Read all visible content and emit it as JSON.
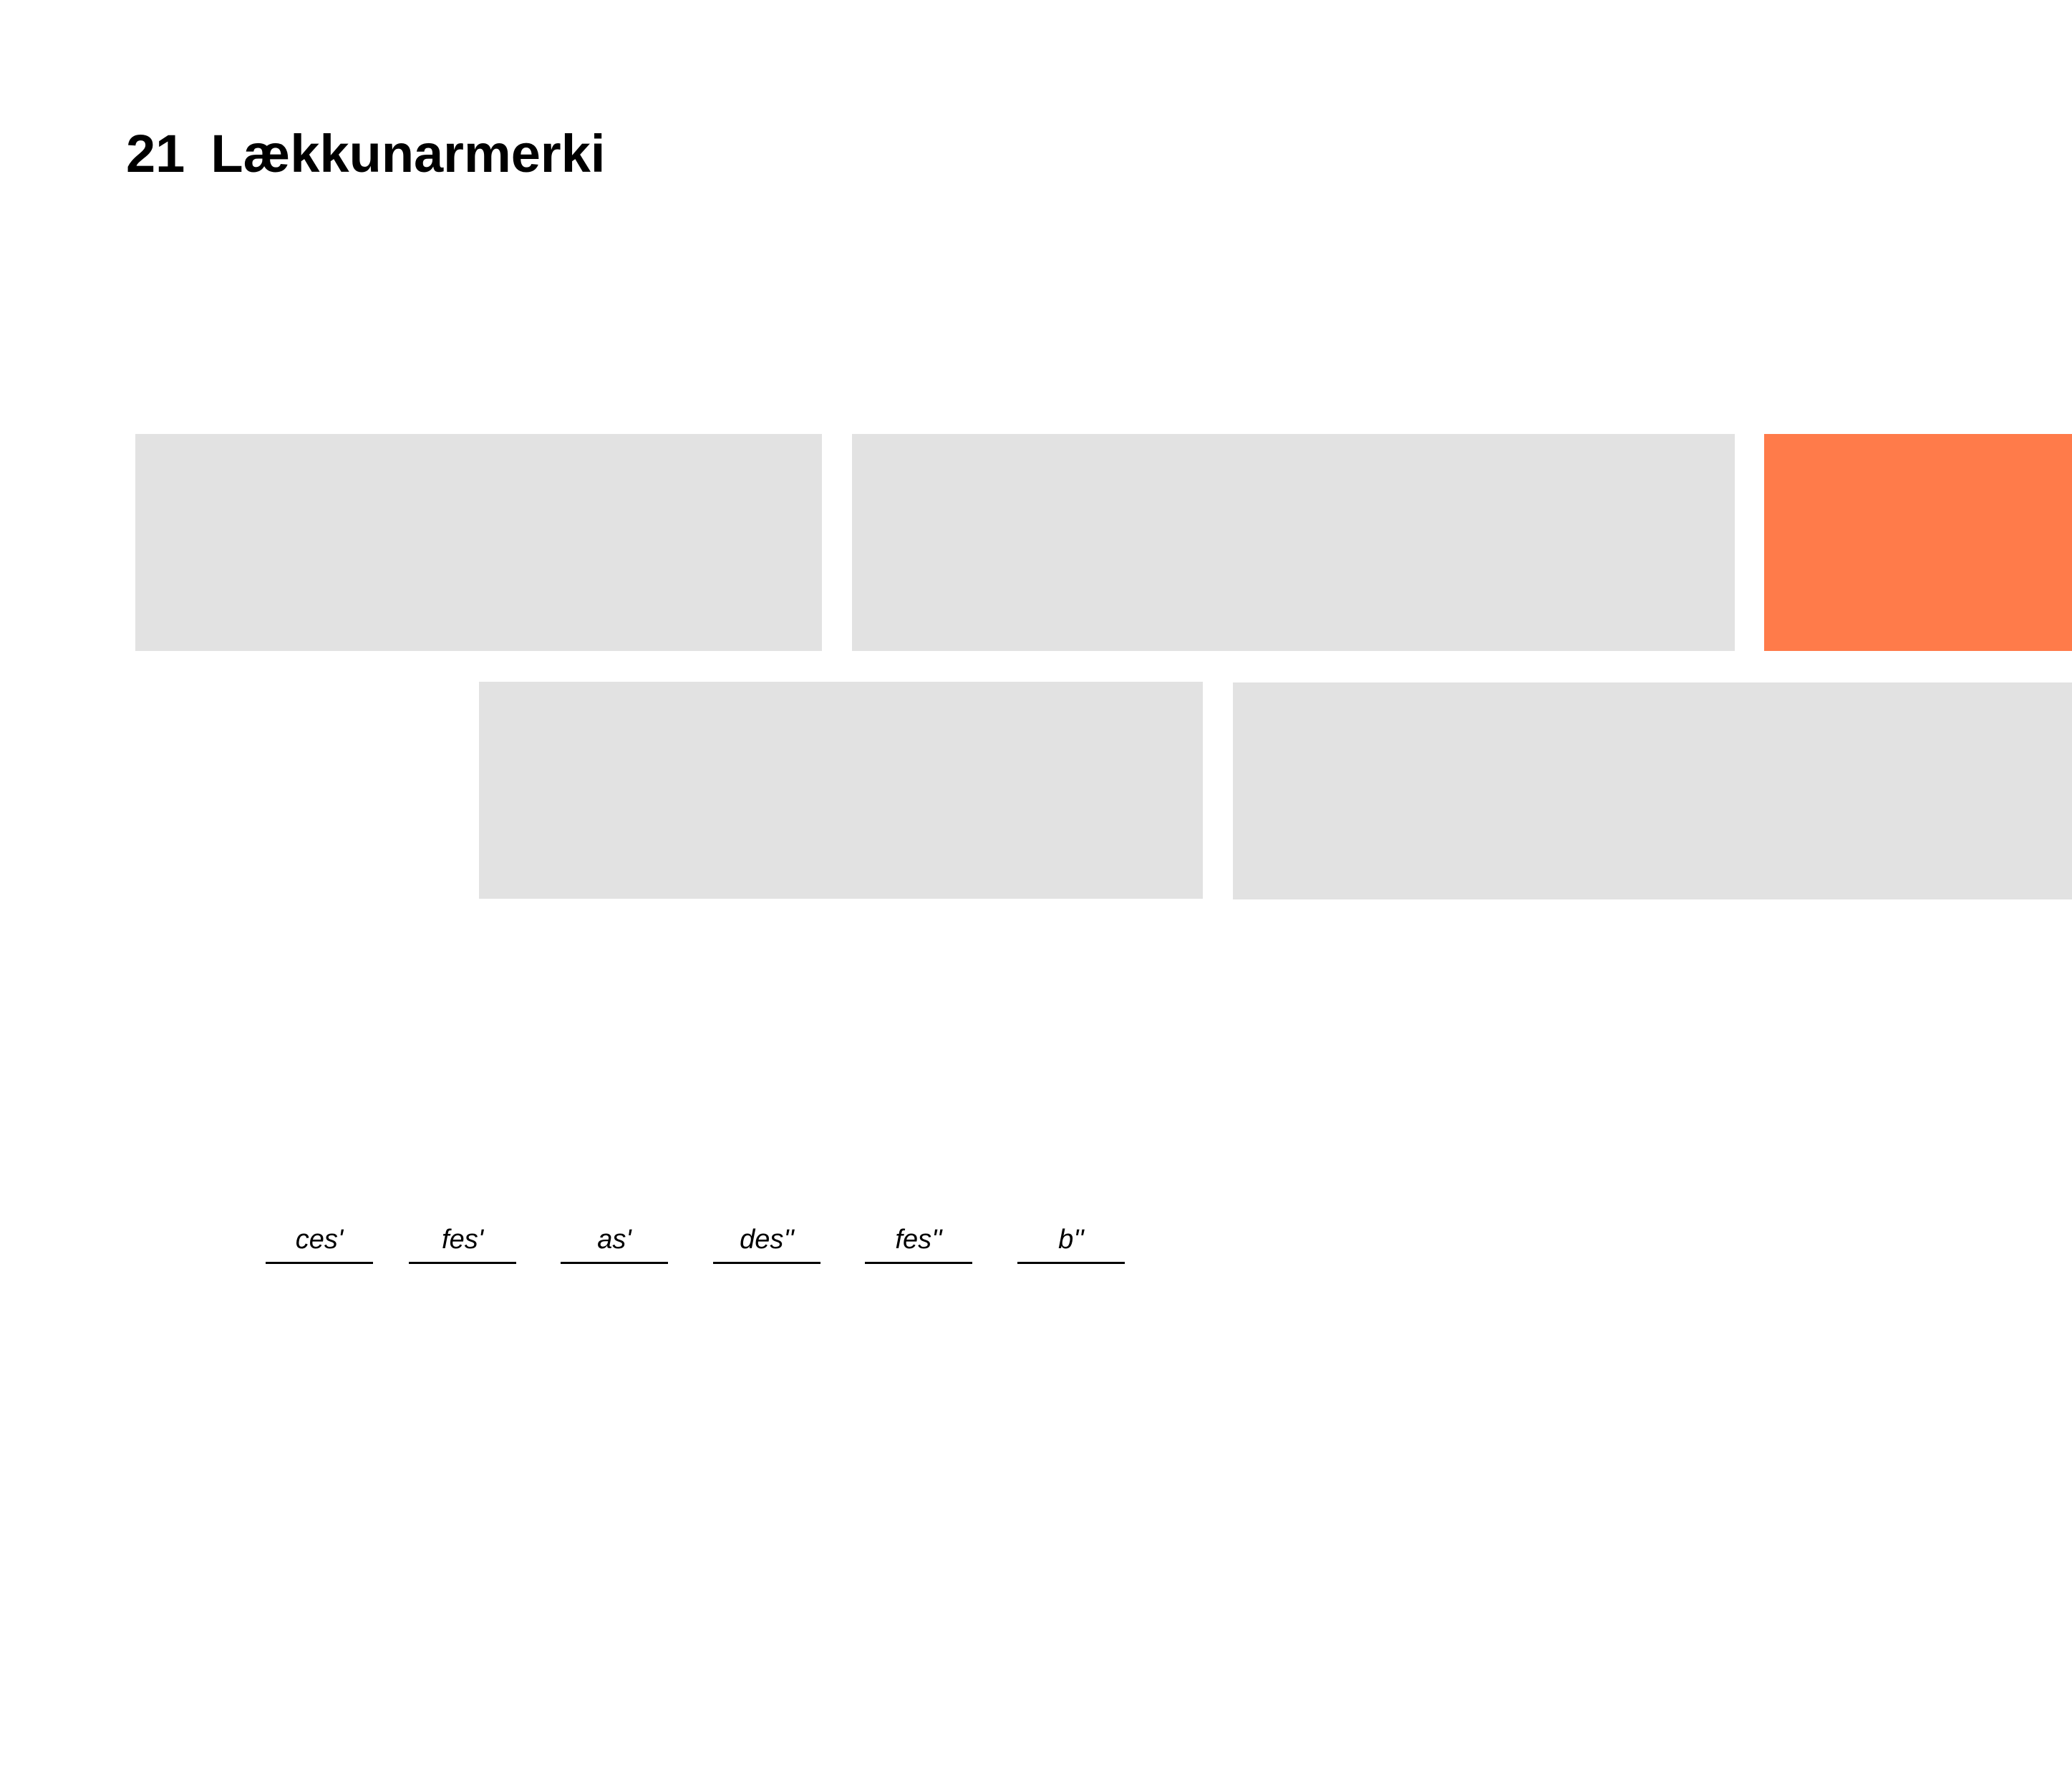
{
  "heading": {
    "number": "21",
    "title": "Lækkunarmerki"
  },
  "colors": {
    "block_gray": "#e2e2e2",
    "block_accent": "#ff7b4a",
    "text": "#000000"
  },
  "answers": [
    {
      "label": "ces'"
    },
    {
      "label": "fes'"
    },
    {
      "label": "as'"
    },
    {
      "label": "des''"
    },
    {
      "label": "fes''"
    },
    {
      "label": "b''"
    }
  ]
}
